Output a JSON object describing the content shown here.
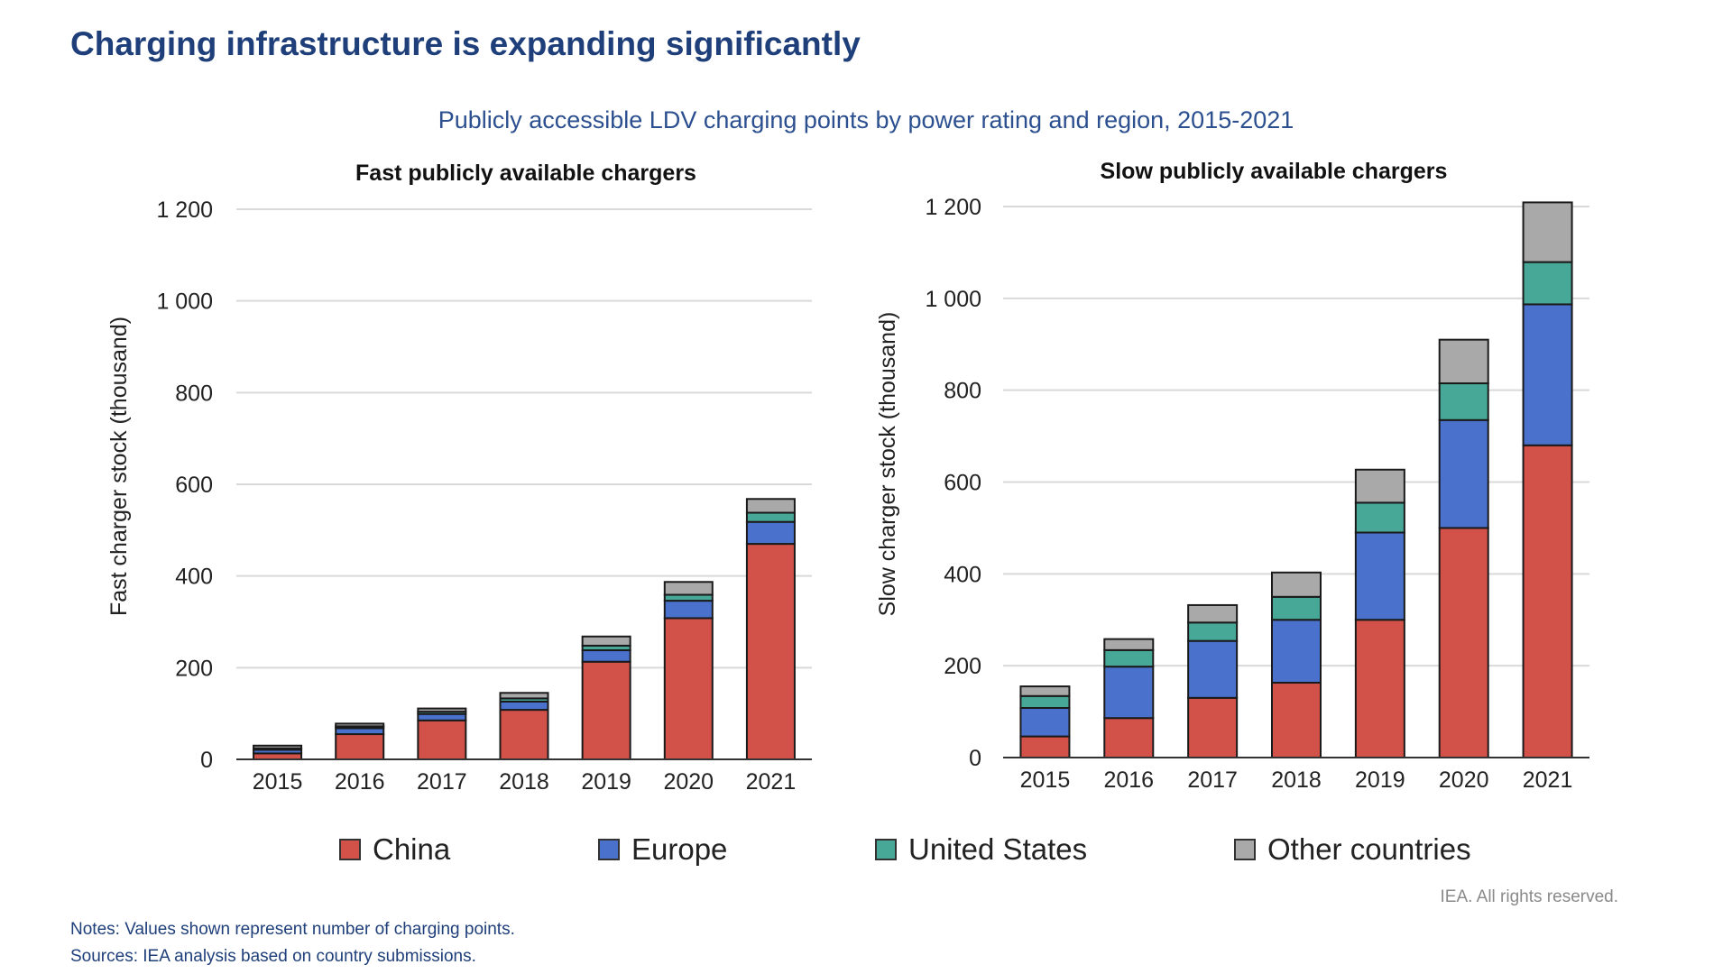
{
  "header": {
    "title": "Charging infrastructure is expanding significantly",
    "subtitle": "Publicly accessible LDV charging points by power rating and region, 2015-2021"
  },
  "colors": {
    "China": "#d2524a",
    "Europe": "#4a72cc",
    "United States": "#48a898",
    "Other countries": "#a9a9a9"
  },
  "chart_data": [
    {
      "type": "bar",
      "stacked": true,
      "title": "Fast  publicly available chargers",
      "xlabel": "",
      "ylabel": "Fast charger stock (thousand)",
      "ylim": [
        0,
        1200
      ],
      "yticks": [
        0,
        200,
        400,
        600,
        800,
        1000,
        1200
      ],
      "ytick_labels": [
        "0",
        "200",
        "400",
        "600",
        "800",
        "1 000",
        "1 200"
      ],
      "grid": true,
      "categories": [
        "2015",
        "2016",
        "2017",
        "2018",
        "2019",
        "2020",
        "2021"
      ],
      "series": [
        {
          "name": "China",
          "values": [
            13,
            55,
            85,
            108,
            213,
            308,
            470
          ]
        },
        {
          "name": "Europe",
          "values": [
            8,
            13,
            14,
            18,
            25,
            38,
            48
          ]
        },
        {
          "name": "United States",
          "values": [
            3,
            4,
            5,
            7,
            10,
            13,
            20
          ]
        },
        {
          "name": "Other countries",
          "values": [
            6,
            6,
            7,
            12,
            20,
            28,
            30
          ]
        }
      ]
    },
    {
      "type": "bar",
      "stacked": true,
      "title": "Slow publicly available chargers",
      "xlabel": "",
      "ylabel": "Slow charger stock (thousand)",
      "ylim": [
        0,
        1200
      ],
      "yticks": [
        0,
        200,
        400,
        600,
        800,
        1000,
        1200
      ],
      "ytick_labels": [
        "0",
        "200",
        "400",
        "600",
        "800",
        "1 000",
        "1 200"
      ],
      "grid": true,
      "categories": [
        "2015",
        "2016",
        "2017",
        "2018",
        "2019",
        "2020",
        "2021"
      ],
      "series": [
        {
          "name": "China",
          "values": [
            46,
            86,
            130,
            163,
            300,
            500,
            680
          ]
        },
        {
          "name": "Europe",
          "values": [
            62,
            112,
            124,
            137,
            190,
            235,
            307
          ]
        },
        {
          "name": "United States",
          "values": [
            26,
            36,
            40,
            50,
            65,
            80,
            92
          ]
        },
        {
          "name": "Other countries",
          "values": [
            21,
            24,
            38,
            53,
            72,
            95,
            130
          ]
        }
      ]
    }
  ],
  "legend": [
    {
      "label": "China",
      "color": "#d2524a"
    },
    {
      "label": "Europe",
      "color": "#4a72cc"
    },
    {
      "label": "United States",
      "color": "#48a898"
    },
    {
      "label": "Other countries",
      "color": "#a9a9a9"
    }
  ],
  "footer": {
    "rights": "IEA. All rights reserved.",
    "notes": "Notes: Values shown represent number of charging points.",
    "sources": "Sources: IEA analysis based on country submissions."
  }
}
